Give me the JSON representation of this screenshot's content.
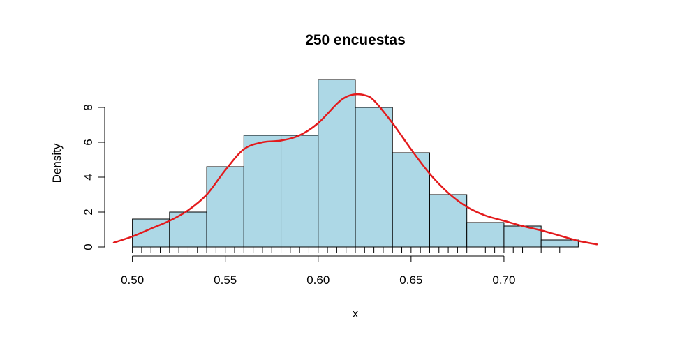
{
  "chart_data": {
    "type": "bar",
    "title": "250 encuestas",
    "xlabel": "x",
    "ylabel": "Density",
    "xlim": [
      0.49,
      0.75
    ],
    "ylim": [
      0,
      9.6
    ],
    "x_ticks": [
      0.5,
      0.55,
      0.6,
      0.65,
      0.7
    ],
    "x_tick_labels": [
      "0.50",
      "0.55",
      "0.60",
      "0.65",
      "0.70"
    ],
    "y_ticks": [
      0,
      2,
      4,
      6,
      8
    ],
    "y_tick_labels": [
      "0",
      "2",
      "4",
      "6",
      "8"
    ],
    "grid": false,
    "histogram": {
      "breaks": [
        0.5,
        0.52,
        0.54,
        0.56,
        0.58,
        0.6,
        0.62,
        0.64,
        0.66,
        0.68,
        0.7,
        0.72,
        0.74
      ],
      "density": [
        1.6,
        2.0,
        4.6,
        6.4,
        6.4,
        9.6,
        8.0,
        5.4,
        3.0,
        1.4,
        1.2,
        0.4
      ],
      "fill_color": "#add8e6",
      "border_color": "#000000"
    },
    "density_curve": {
      "color": "#e31a1c",
      "x": [
        0.49,
        0.5,
        0.51,
        0.52,
        0.53,
        0.54,
        0.55,
        0.56,
        0.57,
        0.58,
        0.59,
        0.6,
        0.61,
        0.615,
        0.62,
        0.625,
        0.63,
        0.64,
        0.65,
        0.66,
        0.67,
        0.68,
        0.69,
        0.7,
        0.71,
        0.72,
        0.73,
        0.74,
        0.75
      ],
      "y": [
        0.25,
        0.6,
        1.05,
        1.5,
        2.1,
        3.0,
        4.4,
        5.6,
        6.0,
        6.1,
        6.4,
        7.1,
        8.2,
        8.6,
        8.75,
        8.7,
        8.4,
        7.1,
        5.6,
        4.2,
        3.1,
        2.3,
        1.8,
        1.5,
        1.2,
        0.95,
        0.65,
        0.35,
        0.15
      ]
    },
    "rug": [
      0.5,
      0.505,
      0.51,
      0.515,
      0.52,
      0.525,
      0.53,
      0.535,
      0.54,
      0.545,
      0.55,
      0.555,
      0.56,
      0.565,
      0.57,
      0.575,
      0.58,
      0.585,
      0.59,
      0.595,
      0.6,
      0.605,
      0.61,
      0.615,
      0.62,
      0.625,
      0.63,
      0.635,
      0.64,
      0.645,
      0.65,
      0.655,
      0.66,
      0.665,
      0.67,
      0.675,
      0.68,
      0.69,
      0.695,
      0.7,
      0.705,
      0.71,
      0.72,
      0.73
    ]
  }
}
